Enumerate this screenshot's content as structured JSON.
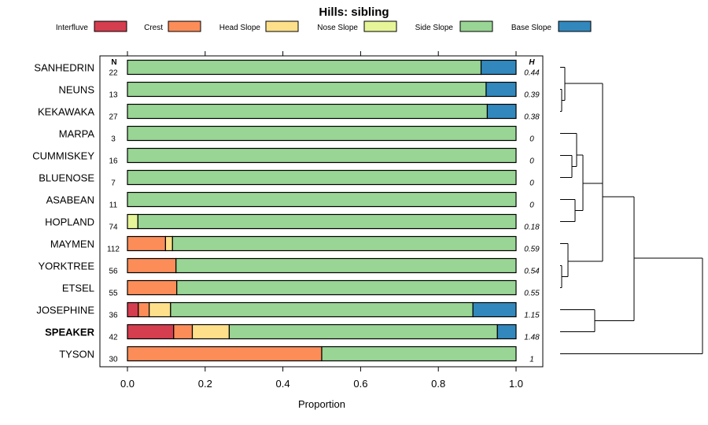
{
  "chart_data": {
    "type": "stacked-horizontal-bar",
    "title": "Hills: sibling",
    "xlabel": "Proportion",
    "xlim": [
      0,
      1
    ],
    "xticks": [
      "0.0",
      "0.2",
      "0.4",
      "0.6",
      "0.8",
      "1.0"
    ],
    "n_header": "N",
    "h_header": "H",
    "legend": [
      {
        "name": "Interfluve",
        "color": "#d53e4f"
      },
      {
        "name": "Crest",
        "color": "#fc8d59"
      },
      {
        "name": "Head Slope",
        "color": "#fee08b"
      },
      {
        "name": "Nose Slope",
        "color": "#e6f598"
      },
      {
        "name": "Side Slope",
        "color": "#99d594"
      },
      {
        "name": "Base Slope",
        "color": "#3288bd"
      }
    ],
    "rows": [
      {
        "name": "SANHEDRIN",
        "n": "22",
        "h": "0.44",
        "bold": false,
        "values": [
          0,
          0,
          0,
          0,
          0.91,
          0.09
        ]
      },
      {
        "name": "NEUNS",
        "n": "13",
        "h": "0.39",
        "bold": false,
        "values": [
          0,
          0,
          0,
          0,
          0.923,
          0.077
        ]
      },
      {
        "name": "KEKAWAKA",
        "n": "27",
        "h": "0.38",
        "bold": false,
        "values": [
          0,
          0,
          0,
          0,
          0.926,
          0.074
        ]
      },
      {
        "name": "MARPA",
        "n": "3",
        "h": "0",
        "bold": false,
        "values": [
          0,
          0,
          0,
          0,
          1,
          0
        ]
      },
      {
        "name": "CUMMISKEY",
        "n": "16",
        "h": "0",
        "bold": false,
        "values": [
          0,
          0,
          0,
          0,
          1,
          0
        ]
      },
      {
        "name": "BLUENOSE",
        "n": "7",
        "h": "0",
        "bold": false,
        "values": [
          0,
          0,
          0,
          0,
          1,
          0
        ]
      },
      {
        "name": "ASABEAN",
        "n": "11",
        "h": "0",
        "bold": false,
        "values": [
          0,
          0,
          0,
          0,
          1,
          0
        ]
      },
      {
        "name": "HOPLAND",
        "n": "74",
        "h": "0.18",
        "bold": false,
        "values": [
          0,
          0,
          0,
          0.027,
          0.973,
          0
        ]
      },
      {
        "name": "MAYMEN",
        "n": "112",
        "h": "0.59",
        "bold": false,
        "values": [
          0,
          0.098,
          0.018,
          0,
          0.884,
          0
        ]
      },
      {
        "name": "YORKTREE",
        "n": "56",
        "h": "0.54",
        "bold": false,
        "values": [
          0,
          0.125,
          0,
          0,
          0.875,
          0
        ]
      },
      {
        "name": "ETSEL",
        "n": "55",
        "h": "0.55",
        "bold": false,
        "values": [
          0,
          0.127,
          0,
          0,
          0.873,
          0
        ]
      },
      {
        "name": "JOSEPHINE",
        "n": "36",
        "h": "1.15",
        "bold": false,
        "values": [
          0.028,
          0.028,
          0.055,
          0,
          0.778,
          0.111
        ]
      },
      {
        "name": "SPEAKER",
        "n": "42",
        "h": "1.48",
        "bold": true,
        "values": [
          0.119,
          0.048,
          0.095,
          0,
          0.69,
          0.048
        ]
      },
      {
        "name": "TYSON",
        "n": "30",
        "h": "1",
        "bold": false,
        "values": [
          0,
          0.5,
          0,
          0,
          0.5,
          0
        ]
      }
    ]
  }
}
